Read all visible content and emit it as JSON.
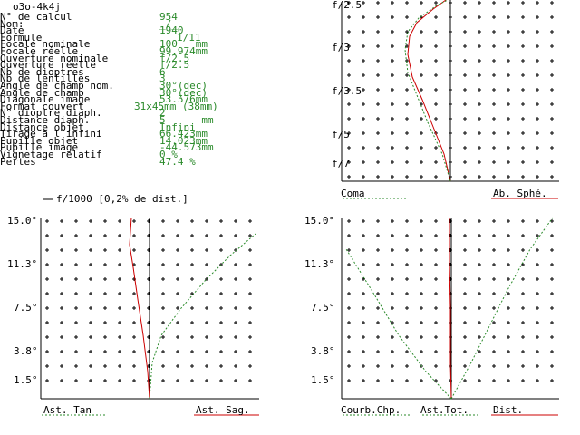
{
  "window_title": "o3o-4k4j",
  "info": {
    "labels": [
      "N° de calcul",
      "Nom:",
      "Date",
      "Formule",
      "Focale nominale",
      "Focale réelle",
      "Ouverture nominale",
      "Ouverture réelle",
      "Nb de dioptres",
      "Nb de lentilles",
      "Angle de champ nom.",
      "Angle de champ",
      "Diagonale image",
      "Format couvert",
      "N° dioptre diaph.",
      "Distance diaph.",
      "Distance objet",
      "Tirage à l'infini",
      "Pupille objet",
      "Pupille image",
      "Vignetage relatif",
      "Pertes"
    ],
    "values": [
      "954",
      "_/_",
      "1940",
      "1/11",
      "100   mm",
      "99.974mm",
      "f/2.5",
      "f/2.5",
      "6",
      "3",
      "30°(dec)",
      "30°(dec)",
      "53.576mm",
      "31x45mm (38mm)",
      "2",
      "5      mm",
      "Infini",
      "66.423mm",
      "14.023mm",
      "-44.573mm",
      "0 %",
      "47.4 %"
    ]
  },
  "top_chart": {
    "ylabels": [
      "f/2.5",
      "f/3",
      "f/3.5",
      "f/5",
      "f/7"
    ],
    "legend_left": "Coma",
    "legend_right": "Ab. Sphé."
  },
  "bottom_header": "f/1000 [0,2% de dist.]",
  "left_chart": {
    "ylabels": [
      "15.0°",
      "11.3°",
      "7.5°",
      "3.8°",
      "1.5°"
    ],
    "legend_left": "Ast. Tan",
    "legend_right": "Ast. Sag."
  },
  "right_chart": {
    "ylabels": [
      "15.0°",
      "11.3°",
      "7.5°",
      "3.8°",
      "1.5°"
    ],
    "legend_1": "Courb.Chp.",
    "legend_2": "Ast.Tot.",
    "legend_3": "Dist."
  },
  "colors": {
    "green": "#2a8a2a",
    "red": "#cc0000",
    "grid": "#000000"
  }
}
